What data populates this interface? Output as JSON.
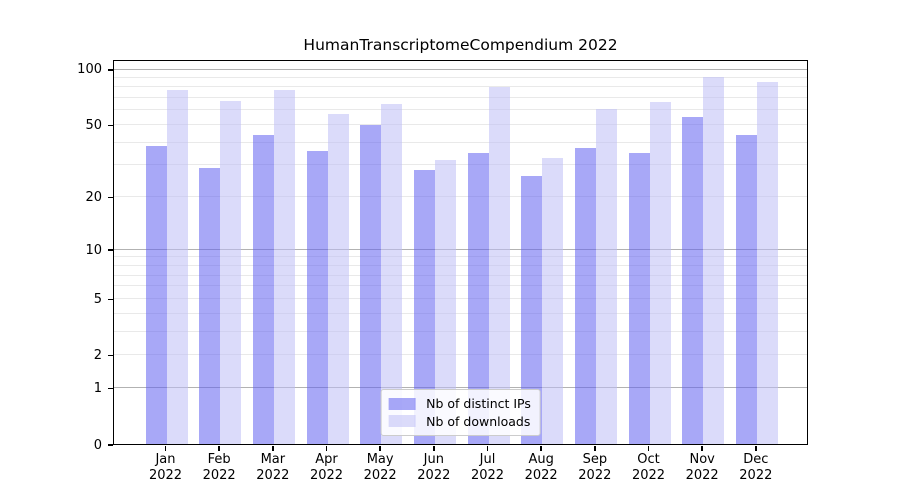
{
  "title": "HumanTranscriptomeCompendium 2022",
  "chart_data": {
    "type": "bar",
    "title": "HumanTranscriptomeCompendium 2022",
    "year": "2022",
    "months": [
      "Jan",
      "Feb",
      "Mar",
      "Apr",
      "May",
      "Jun",
      "Jul",
      "Aug",
      "Sep",
      "Oct",
      "Nov",
      "Dec"
    ],
    "categories": [
      "Jan 2022",
      "Feb 2022",
      "Mar 2022",
      "Apr 2022",
      "May 2022",
      "Jun 2022",
      "Jul 2022",
      "Aug 2022",
      "Sep 2022",
      "Oct 2022",
      "Nov 2022",
      "Dec 2022"
    ],
    "series": [
      {
        "name": "Nb of distinct IPs",
        "color": "rgba(96,96,240,0.55)",
        "solid_color": "#a8a8f7",
        "values": [
          38,
          29,
          44,
          36,
          50,
          28,
          35,
          26,
          37,
          35,
          55,
          44
        ]
      },
      {
        "name": "Nb of downloads",
        "color": "rgba(190,190,245,0.55)",
        "solid_color": "#dbdbf9",
        "values": [
          77,
          67,
          77,
          57,
          65,
          32,
          80,
          33,
          61,
          66,
          91,
          85
        ]
      }
    ],
    "xlabel": "",
    "ylabel": "",
    "y_axis": {
      "scale": "log1p",
      "tick_values": [
        0,
        1,
        2,
        5,
        10,
        20,
        50,
        100
      ],
      "major_gridlines": [
        1,
        10,
        100
      ],
      "minor_gridlines": [
        2,
        3,
        4,
        5,
        6,
        7,
        8,
        9,
        20,
        30,
        40,
        50,
        60,
        70,
        80,
        90
      ],
      "ylim": [
        0,
        113
      ]
    },
    "grid": true,
    "legend_position": "lower center"
  },
  "colors": {
    "bar_distinct_ips": "#a8a8f7",
    "bar_downloads": "#dbdbf9",
    "major_grid": "#b2b2b2",
    "minor_grid": "#e9e9e9",
    "axis_frame": "#000000",
    "background": "#ffffff"
  }
}
